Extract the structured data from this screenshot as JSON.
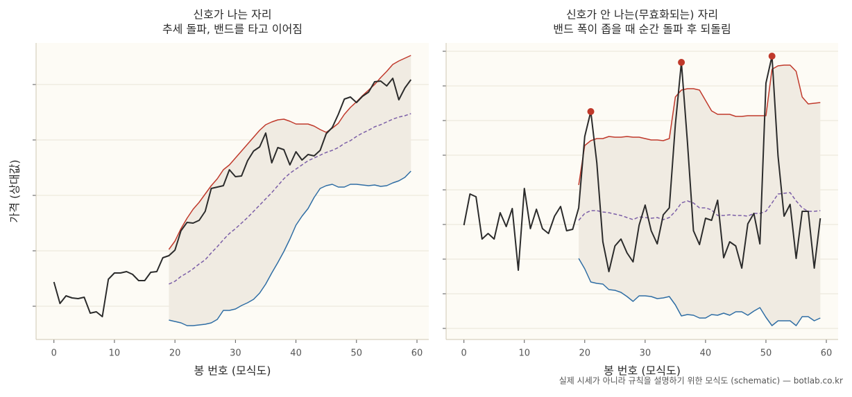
{
  "chart_data": [
    {
      "type": "line",
      "title": "신호가 나는 자리",
      "subtitle": "추세 돌파, 밴드를 타고 이어짐",
      "xlabel": "봉 번호 (모식도)",
      "ylabel": "가격 (상대값)",
      "x": [
        0,
        1,
        2,
        3,
        4,
        5,
        6,
        7,
        8,
        9,
        10,
        11,
        12,
        13,
        14,
        15,
        16,
        17,
        18,
        19,
        20,
        21,
        22,
        23,
        24,
        25,
        26,
        27,
        28,
        29,
        30,
        31,
        32,
        33,
        34,
        35,
        36,
        37,
        38,
        39,
        40,
        41,
        42,
        43,
        44,
        45,
        46,
        47,
        48,
        49,
        50,
        51,
        52,
        53,
        54,
        55,
        56,
        57,
        58,
        59
      ],
      "xlim": [
        -2.95,
        61.95
      ],
      "xticks": [
        0,
        10,
        20,
        30,
        40,
        50,
        60
      ],
      "ylim": [
        -48,
        380
      ],
      "yticks": [
        0,
        80,
        160,
        240,
        320
      ],
      "ytick_labels": false,
      "grid": true,
      "band_fill": "#f0ebe2",
      "series": [
        {
          "color": "#2b2b2b",
          "style": "solid",
          "values": [
            35,
            4,
            15,
            12,
            11,
            13,
            -10,
            -8,
            -15,
            39,
            48,
            48,
            50,
            46,
            37,
            37,
            49,
            50,
            70,
            73,
            81,
            109,
            121,
            120,
            124,
            137,
            170,
            172,
            174,
            197,
            187,
            188,
            210,
            224,
            230,
            250,
            207,
            229,
            226,
            204,
            223,
            211,
            219,
            217,
            225,
            249,
            258,
            277,
            299,
            302,
            294,
            303,
            309,
            324,
            325,
            318,
            329,
            298,
            315,
            327
          ]
        },
        {
          "color": "#c0392b",
          "style": "solid",
          "values": [
            null,
            null,
            null,
            null,
            null,
            null,
            null,
            null,
            null,
            null,
            null,
            null,
            null,
            null,
            null,
            null,
            null,
            null,
            null,
            82,
            94,
            112,
            127,
            140,
            150,
            162,
            174,
            184,
            197,
            204,
            214,
            224,
            234,
            244,
            254,
            262,
            266,
            269,
            270,
            267,
            263,
            263,
            263,
            260,
            255,
            251,
            257,
            264,
            277,
            287,
            295,
            304,
            312,
            320,
            330,
            339,
            349,
            354,
            358,
            362
          ]
        },
        {
          "color": "#7b5ea7",
          "style": "dashed",
          "values": [
            null,
            null,
            null,
            null,
            null,
            null,
            null,
            null,
            null,
            null,
            null,
            null,
            null,
            null,
            null,
            null,
            null,
            null,
            null,
            32,
            36,
            43,
            48,
            54,
            61,
            67,
            77,
            86,
            96,
            105,
            112,
            120,
            128,
            137,
            146,
            155,
            164,
            174,
            184,
            192,
            198,
            204,
            210,
            214,
            218,
            222,
            225,
            229,
            235,
            239,
            245,
            250,
            254,
            259,
            262,
            266,
            270,
            273,
            275,
            278
          ]
        },
        {
          "color": "#2e6da4",
          "style": "solid",
          "values": [
            null,
            null,
            null,
            null,
            null,
            null,
            null,
            null,
            null,
            null,
            null,
            null,
            null,
            null,
            null,
            null,
            null,
            null,
            null,
            -20,
            -22,
            -24,
            -28,
            -28,
            -27,
            -26,
            -24,
            -19,
            -6,
            -6,
            -4,
            1,
            5,
            10,
            19,
            32,
            48,
            63,
            79,
            97,
            117,
            130,
            141,
            157,
            170,
            174,
            176,
            172,
            172,
            176,
            176,
            175,
            174,
            175,
            173,
            174,
            178,
            181,
            186,
            195
          ]
        }
      ]
    },
    {
      "type": "line",
      "title": "신호가 안 나는(무효화되는) 자리",
      "subtitle": "밴드 폭이 좁을 때 순간 돌파 후 되돌림",
      "xlabel": "봉 번호 (모식도)",
      "x": [
        0,
        1,
        2,
        3,
        4,
        5,
        6,
        7,
        8,
        9,
        10,
        11,
        12,
        13,
        14,
        15,
        16,
        17,
        18,
        19,
        20,
        21,
        22,
        23,
        24,
        25,
        26,
        27,
        28,
        29,
        30,
        31,
        32,
        33,
        34,
        35,
        36,
        37,
        38,
        39,
        40,
        41,
        42,
        43,
        44,
        45,
        46,
        47,
        48,
        49,
        50,
        51,
        52,
        53,
        54,
        55,
        56,
        57,
        58,
        59
      ],
      "xlim": [
        -2.95,
        61.95
      ],
      "xticks": [
        0,
        10,
        20,
        30,
        40,
        50,
        60
      ],
      "ylim": [
        -16,
        412
      ],
      "yticks": [
        0,
        50,
        100,
        150,
        200,
        250,
        300,
        350,
        400
      ],
      "ytick_labels": false,
      "grid": true,
      "band_fill": "#f0ebe2",
      "peaks": {
        "series": 0,
        "indices": [
          21,
          36,
          51
        ],
        "color": "#c0392b"
      },
      "series": [
        {
          "color": "#2b2b2b",
          "style": "solid",
          "values": [
            149,
            194,
            190,
            129,
            137,
            129,
            167,
            147,
            173,
            84,
            202,
            144,
            172,
            144,
            137,
            162,
            176,
            141,
            143,
            174,
            277,
            313,
            239,
            125,
            82,
            119,
            129,
            109,
            96,
            149,
            178,
            141,
            122,
            164,
            174,
            294,
            384,
            269,
            141,
            121,
            159,
            156,
            185,
            102,
            125,
            119,
            87,
            151,
            166,
            122,
            354,
            393,
            249,
            162,
            179,
            101,
            169,
            169,
            87,
            159
          ]
        },
        {
          "color": "#c0392b",
          "style": "solid",
          "values": [
            null,
            null,
            null,
            null,
            null,
            null,
            null,
            null,
            null,
            null,
            null,
            null,
            null,
            null,
            null,
            null,
            null,
            null,
            null,
            207,
            264,
            271,
            274,
            274,
            277,
            276,
            276,
            277,
            276,
            276,
            274,
            272,
            272,
            271,
            274,
            334,
            344,
            346,
            346,
            344,
            329,
            314,
            309,
            309,
            309,
            306,
            306,
            307,
            307,
            307,
            307,
            374,
            379,
            380,
            380,
            371,
            334,
            324,
            325,
            326
          ]
        },
        {
          "color": "#7b5ea7",
          "style": "dashed",
          "values": [
            null,
            null,
            null,
            null,
            null,
            null,
            null,
            null,
            null,
            null,
            null,
            null,
            null,
            null,
            null,
            null,
            null,
            null,
            null,
            156,
            166,
            170,
            170,
            168,
            167,
            165,
            163,
            160,
            157,
            161,
            160,
            159,
            160,
            157,
            160,
            169,
            181,
            184,
            181,
            174,
            174,
            171,
            163,
            163,
            164,
            163,
            163,
            162,
            166,
            166,
            169,
            181,
            194,
            195,
            196,
            184,
            174,
            169,
            169,
            170
          ]
        },
        {
          "color": "#2e6da4",
          "style": "solid",
          "values": [
            null,
            null,
            null,
            null,
            null,
            null,
            null,
            null,
            null,
            null,
            null,
            null,
            null,
            null,
            null,
            null,
            null,
            null,
            null,
            101,
            86,
            67,
            65,
            64,
            56,
            55,
            52,
            46,
            39,
            47,
            47,
            46,
            43,
            44,
            46,
            34,
            18,
            20,
            19,
            15,
            15,
            20,
            19,
            22,
            19,
            24,
            24,
            19,
            25,
            30,
            16,
            4,
            11,
            11,
            11,
            4,
            17,
            17,
            11,
            15
          ]
        }
      ]
    }
  ],
  "footer": "실제 시세가 아니라 규칙을 설명하기 위한 모식도 (schematic) — botlab.co.kr"
}
